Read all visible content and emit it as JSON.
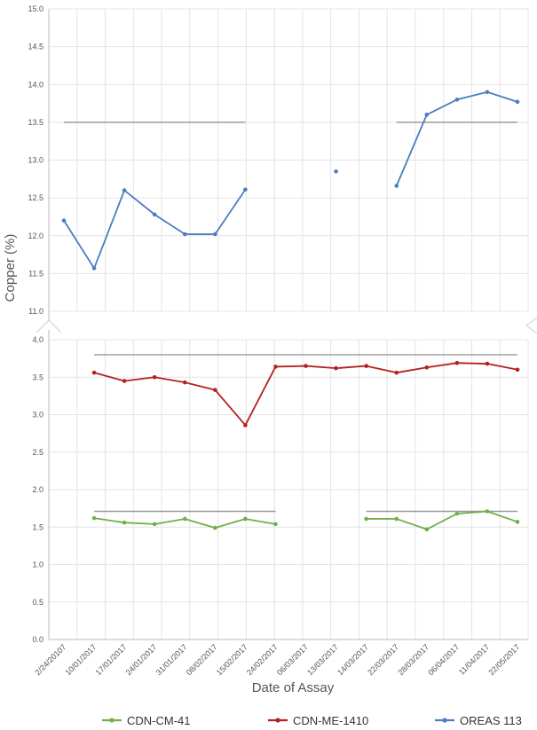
{
  "chart_data": {
    "type": "line",
    "xlabel": "Date of Assay",
    "ylabel": "Copper (%)",
    "axis_break": "broken y-axis between 4.0 and 11.0",
    "grid": true,
    "legend_position": "bottom",
    "categories": [
      "2/24/20107",
      "10/01/2017",
      "17/01/2017",
      "24/01/2017",
      "31/01/2017",
      "08/02/2017",
      "15/02/2017",
      "24/02/2017",
      "06/03/2017",
      "13/03/2017",
      "14/03/2017",
      "22/03/2017",
      "28/03/2017",
      "06/04/2017",
      "11/04/2017",
      "22/05/2017"
    ],
    "upper_panel": {
      "ylim": [
        11.0,
        15.0
      ],
      "yticks": [
        "11.0",
        "11.5",
        "12.0",
        "12.5",
        "13.0",
        "13.5",
        "14.0",
        "14.5",
        "15.0"
      ]
    },
    "lower_panel": {
      "ylim": [
        0.0,
        4.0
      ],
      "yticks": [
        "0.0",
        "0.5",
        "1.0",
        "1.5",
        "2.0",
        "2.5",
        "3.0",
        "3.5",
        "4.0"
      ]
    },
    "series": [
      {
        "name": "CDN-CM-41",
        "color": "#6fb04a",
        "panel": "lower",
        "values": [
          null,
          1.62,
          1.56,
          1.54,
          1.61,
          1.49,
          1.61,
          1.54,
          null,
          null,
          1.61,
          1.61,
          1.47,
          1.68,
          1.71,
          1.57
        ]
      },
      {
        "name": "CDN-ME-1410",
        "color": "#b52020",
        "panel": "lower",
        "values": [
          null,
          3.56,
          3.45,
          3.5,
          3.43,
          3.33,
          2.86,
          3.64,
          3.65,
          3.62,
          3.65,
          3.56,
          3.63,
          3.69,
          3.68,
          3.6
        ]
      },
      {
        "name": "OREAS 113",
        "color": "#4a7ec0",
        "panel": "upper",
        "values": [
          12.2,
          11.57,
          12.6,
          12.28,
          12.02,
          12.02,
          12.61,
          null,
          null,
          12.85,
          null,
          12.66,
          13.6,
          13.8,
          13.9,
          13.77
        ]
      }
    ],
    "reference_lines": [
      {
        "panel": "upper",
        "value": 13.5,
        "from": "2/24/20107",
        "to": "15/02/2017",
        "color": "#9a9a9a"
      },
      {
        "panel": "upper",
        "value": 13.5,
        "from": "22/03/2017",
        "to": "22/05/2017",
        "color": "#9a9a9a"
      },
      {
        "panel": "lower",
        "value": 3.8,
        "from": "10/01/2017",
        "to": "22/05/2017",
        "color": "#9a9a9a"
      },
      {
        "panel": "lower",
        "value": 1.71,
        "from": "10/01/2017",
        "to": "24/02/2017",
        "color": "#9a9a9a"
      },
      {
        "panel": "lower",
        "value": 1.71,
        "from": "14/03/2017",
        "to": "22/05/2017",
        "color": "#9a9a9a"
      }
    ]
  }
}
